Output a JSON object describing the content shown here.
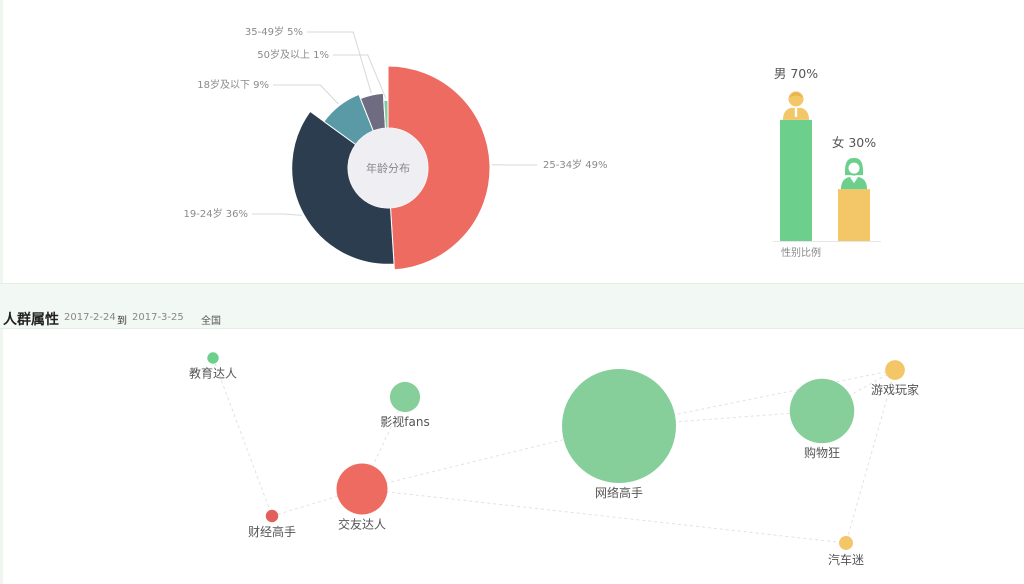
{
  "header": {
    "title": "人群属性",
    "date_start": "2017-2-24",
    "to_label": "到",
    "date_end": "2017-3-25",
    "region": "全国"
  },
  "chart_data": [
    {
      "type": "pie",
      "variant": "rose-donut",
      "center_label": "年龄分布",
      "slices": [
        {
          "label": "25-34岁 49%",
          "value": 49,
          "color": "#ed6b60"
        },
        {
          "label": "19-24岁 36%",
          "value": 36,
          "color": "#2b3d4f"
        },
        {
          "label": "18岁及以下 9%",
          "value": 9,
          "color": "#5a9aa6"
        },
        {
          "label": "35-49岁 5%",
          "value": 5,
          "color": "#6f6b80"
        },
        {
          "label": "50岁及以上 1%",
          "value": 1,
          "color": "#86c9a1"
        }
      ]
    },
    {
      "type": "bar",
      "title": "性别比例",
      "categories": [
        "男 70%",
        "女 30%"
      ],
      "values": [
        70,
        30
      ],
      "colors": [
        "#6cd08c",
        "#f3c668"
      ],
      "icon_colors": [
        "#f3c668",
        "#6cd08c"
      ],
      "icons": [
        "male-person-icon",
        "female-person-icon"
      ],
      "ylim": [
        0,
        100
      ]
    },
    {
      "type": "scatter",
      "variant": "bubble-network",
      "nodes": [
        {
          "label": "教育达人",
          "size": 1,
          "color": "#6cd08c"
        },
        {
          "label": "影视fans",
          "size": 7,
          "color": "#86cf9a"
        },
        {
          "label": "财经高手",
          "size": 1.2,
          "color": "#e3605a"
        },
        {
          "label": "交友达人",
          "size": 20,
          "color": "#ed6b60"
        },
        {
          "label": "网络高手",
          "size": 100,
          "color": "#86cf9a"
        },
        {
          "label": "购物狂",
          "size": 32,
          "color": "#86cf9a"
        },
        {
          "label": "游戏玩家",
          "size": 3,
          "color": "#f3c668"
        },
        {
          "label": "汽车迷",
          "size": 1.5,
          "color": "#f3c668"
        }
      ],
      "links": [
        [
          "教育达人",
          "财经高手"
        ],
        [
          "财经高手",
          "交友达人"
        ],
        [
          "交友达人",
          "影视fans"
        ],
        [
          "交友达人",
          "网络高手"
        ],
        [
          "交友达人",
          "汽车迷"
        ],
        [
          "网络高手",
          "游戏玩家"
        ],
        [
          "网络高手",
          "购物狂"
        ],
        [
          "购物狂",
          "游戏玩家"
        ],
        [
          "游戏玩家",
          "汽车迷"
        ]
      ]
    }
  ]
}
